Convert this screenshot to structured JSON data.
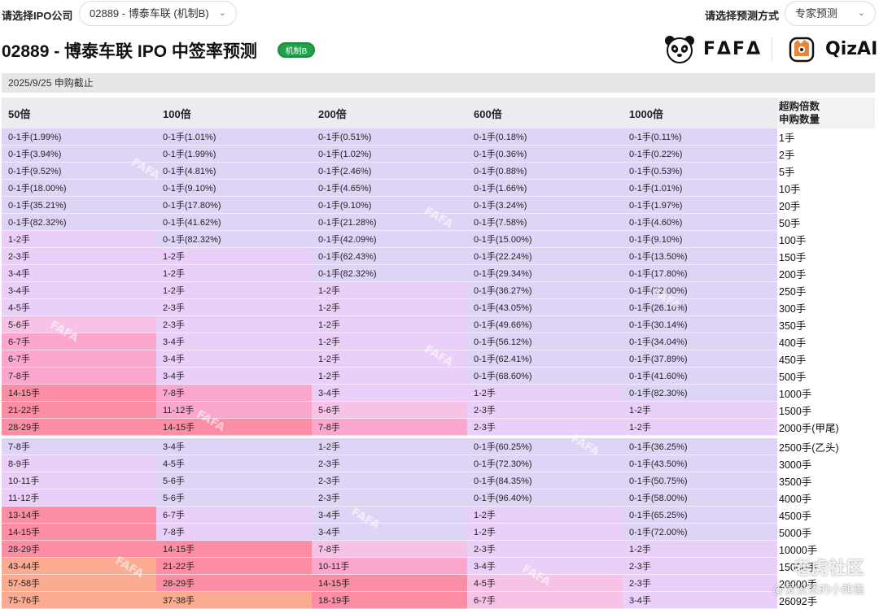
{
  "topbar": {
    "company_label": "请选择IPO公司",
    "company_value": "02889 - 博泰车联 (机制B)",
    "method_label": "请选择预测方式",
    "method_value": "专家预测"
  },
  "header": {
    "title": "02889 - 博泰车联 IPO 中签率预测",
    "badge": "机制B",
    "logo_fafa": "FΔFΔ",
    "logo_qizai": "QizAI"
  },
  "datebar": "2025/9/25 申购截止",
  "table": {
    "headers": [
      "50倍",
      "100倍",
      "200倍",
      "600倍",
      "1000倍"
    ],
    "last_header_line1": "超购倍数",
    "last_header_line2": "申购数量",
    "rows": [
      {
        "cells": [
          [
            "0-1手(1.99%)",
            0
          ],
          [
            "0-1手(1.01%)",
            0
          ],
          [
            "0-1手(0.51%)",
            0
          ],
          [
            "0-1手(0.18%)",
            0
          ],
          [
            "0-1手(0.11%)",
            0
          ]
        ],
        "qty": "1手"
      },
      {
        "cells": [
          [
            "0-1手(3.94%)",
            0
          ],
          [
            "0-1手(1.99%)",
            0
          ],
          [
            "0-1手(1.02%)",
            0
          ],
          [
            "0-1手(0.36%)",
            0
          ],
          [
            "0-1手(0.22%)",
            0
          ]
        ],
        "qty": "2手"
      },
      {
        "cells": [
          [
            "0-1手(9.52%)",
            0
          ],
          [
            "0-1手(4.81%)",
            0
          ],
          [
            "0-1手(2.46%)",
            0
          ],
          [
            "0-1手(0.88%)",
            0
          ],
          [
            "0-1手(0.53%)",
            0
          ]
        ],
        "qty": "5手"
      },
      {
        "cells": [
          [
            "0-1手(18.00%)",
            0
          ],
          [
            "0-1手(9.10%)",
            0
          ],
          [
            "0-1手(4.65%)",
            0
          ],
          [
            "0-1手(1.66%)",
            0
          ],
          [
            "0-1手(1.01%)",
            0
          ]
        ],
        "qty": "10手"
      },
      {
        "cells": [
          [
            "0-1手(35.21%)",
            0
          ],
          [
            "0-1手(17.80%)",
            0
          ],
          [
            "0-1手(9.10%)",
            0
          ],
          [
            "0-1手(3.24%)",
            0
          ],
          [
            "0-1手(1.97%)",
            0
          ]
        ],
        "qty": "20手"
      },
      {
        "cells": [
          [
            "0-1手(82.32%)",
            0
          ],
          [
            "0-1手(41.62%)",
            0
          ],
          [
            "0-1手(21.28%)",
            0
          ],
          [
            "0-1手(7.58%)",
            0
          ],
          [
            "0-1手(4.60%)",
            0
          ]
        ],
        "qty": "50手"
      },
      {
        "cells": [
          [
            "1-2手",
            1
          ],
          [
            "0-1手(82.32%)",
            0
          ],
          [
            "0-1手(42.09%)",
            0
          ],
          [
            "0-1手(15.00%)",
            0
          ],
          [
            "0-1手(9.10%)",
            0
          ]
        ],
        "qty": "100手"
      },
      {
        "cells": [
          [
            "2-3手",
            1
          ],
          [
            "1-2手",
            1
          ],
          [
            "0-1手(62.43%)",
            0
          ],
          [
            "0-1手(22.24%)",
            0
          ],
          [
            "0-1手(13.50%)",
            0
          ]
        ],
        "qty": "150手"
      },
      {
        "cells": [
          [
            "3-4手",
            1
          ],
          [
            "1-2手",
            1
          ],
          [
            "0-1手(82.32%)",
            0
          ],
          [
            "0-1手(29.34%)",
            0
          ],
          [
            "0-1手(17.80%)",
            0
          ]
        ],
        "qty": "200手"
      },
      {
        "cells": [
          [
            "3-4手",
            1
          ],
          [
            "1-2手",
            1
          ],
          [
            "1-2手",
            1
          ],
          [
            "0-1手(36.27%)",
            0
          ],
          [
            "0-1手(22.00%)",
            0
          ]
        ],
        "qty": "250手"
      },
      {
        "cells": [
          [
            "4-5手",
            1
          ],
          [
            "2-3手",
            1
          ],
          [
            "1-2手",
            1
          ],
          [
            "0-1手(43.05%)",
            0
          ],
          [
            "0-1手(26.10%)",
            0
          ]
        ],
        "qty": "300手"
      },
      {
        "cells": [
          [
            "5-6手",
            2
          ],
          [
            "2-3手",
            1
          ],
          [
            "1-2手",
            1
          ],
          [
            "0-1手(49.66%)",
            0
          ],
          [
            "0-1手(30.14%)",
            0
          ]
        ],
        "qty": "350手"
      },
      {
        "cells": [
          [
            "6-7手",
            3
          ],
          [
            "3-4手",
            1
          ],
          [
            "1-2手",
            1
          ],
          [
            "0-1手(56.12%)",
            0
          ],
          [
            "0-1手(34.04%)",
            0
          ]
        ],
        "qty": "400手"
      },
      {
        "cells": [
          [
            "6-7手",
            3
          ],
          [
            "3-4手",
            1
          ],
          [
            "1-2手",
            1
          ],
          [
            "0-1手(62.41%)",
            0
          ],
          [
            "0-1手(37.89%)",
            0
          ]
        ],
        "qty": "450手"
      },
      {
        "cells": [
          [
            "7-8手",
            3
          ],
          [
            "3-4手",
            1
          ],
          [
            "1-2手",
            1
          ],
          [
            "0-1手(68.60%)",
            0
          ],
          [
            "0-1手(41.60%)",
            0
          ]
        ],
        "qty": "500手"
      },
      {
        "cells": [
          [
            "14-15手",
            4
          ],
          [
            "7-8手",
            3
          ],
          [
            "3-4手",
            1
          ],
          [
            "1-2手",
            1
          ],
          [
            "0-1手(82.30%)",
            0
          ]
        ],
        "qty": "1000手"
      },
      {
        "cells": [
          [
            "21-22手",
            4
          ],
          [
            "11-12手",
            3
          ],
          [
            "5-6手",
            2
          ],
          [
            "2-3手",
            1
          ],
          [
            "1-2手",
            1
          ]
        ],
        "qty": "1500手"
      },
      {
        "cells": [
          [
            "28-29手",
            4
          ],
          [
            "14-15手",
            4
          ],
          [
            "7-8手",
            3
          ],
          [
            "2-3手",
            1
          ],
          [
            "1-2手",
            1
          ]
        ],
        "qty": "2000手(甲尾)"
      },
      {
        "cells": [
          [
            "7-8手",
            0
          ],
          [
            "3-4手",
            0
          ],
          [
            "1-2手",
            0
          ],
          [
            "0-1手(60.25%)",
            0
          ],
          [
            "0-1手(36.25%)",
            0
          ]
        ],
        "qty": "2500手(乙头)",
        "sep": true
      },
      {
        "cells": [
          [
            "8-9手",
            1
          ],
          [
            "4-5手",
            0
          ],
          [
            "2-3手",
            0
          ],
          [
            "0-1手(72.30%)",
            0
          ],
          [
            "0-1手(43.50%)",
            0
          ]
        ],
        "qty": "3000手"
      },
      {
        "cells": [
          [
            "10-11手",
            1
          ],
          [
            "5-6手",
            0
          ],
          [
            "2-3手",
            0
          ],
          [
            "0-1手(84.35%)",
            0
          ],
          [
            "0-1手(50.75%)",
            0
          ]
        ],
        "qty": "3500手"
      },
      {
        "cells": [
          [
            "11-12手",
            1
          ],
          [
            "5-6手",
            0
          ],
          [
            "2-3手",
            0
          ],
          [
            "0-1手(96.40%)",
            0
          ],
          [
            "0-1手(58.00%)",
            0
          ]
        ],
        "qty": "4000手"
      },
      {
        "cells": [
          [
            "13-14手",
            4
          ],
          [
            "6-7手",
            1
          ],
          [
            "3-4手",
            0
          ],
          [
            "1-2手",
            1
          ],
          [
            "0-1手(65.25%)",
            0
          ]
        ],
        "qty": "4500手"
      },
      {
        "cells": [
          [
            "14-15手",
            4
          ],
          [
            "7-8手",
            1
          ],
          [
            "3-4手",
            0
          ],
          [
            "1-2手",
            1
          ],
          [
            "0-1手(72.00%)",
            0
          ]
        ],
        "qty": "5000手"
      },
      {
        "cells": [
          [
            "28-29手",
            4
          ],
          [
            "14-15手",
            4
          ],
          [
            "7-8手",
            2
          ],
          [
            "2-3手",
            1
          ],
          [
            "1-2手",
            1
          ]
        ],
        "qty": "10000手"
      },
      {
        "cells": [
          [
            "43-44手",
            5
          ],
          [
            "21-22手",
            4
          ],
          [
            "10-11手",
            3
          ],
          [
            "3-4手",
            1
          ],
          [
            "2-3手",
            1
          ]
        ],
        "qty": "15000手"
      },
      {
        "cells": [
          [
            "57-58手",
            5
          ],
          [
            "28-29手",
            4
          ],
          [
            "14-15手",
            4
          ],
          [
            "4-5手",
            2
          ],
          [
            "2-3手",
            1
          ]
        ],
        "qty": "20000手"
      },
      {
        "cells": [
          [
            "75-76手",
            5
          ],
          [
            "37-38手",
            5
          ],
          [
            "18-19手",
            4
          ],
          [
            "6-7手",
            2
          ],
          [
            "3-4手",
            1
          ]
        ],
        "qty": "26092手"
      }
    ]
  },
  "colors": {
    "level_0": "#ded5f6",
    "level_1": "#ead0f8",
    "level_2": "#f6c3e6",
    "level_3": "#fba6cc",
    "level_4": "#fb8da5",
    "level_5": "#fbab91",
    "badge": "#22a04b"
  },
  "watermark": {
    "text": "FAFA",
    "corner_line1": "老虎社区",
    "corner_line2": "@爱投资的小熊猫"
  }
}
